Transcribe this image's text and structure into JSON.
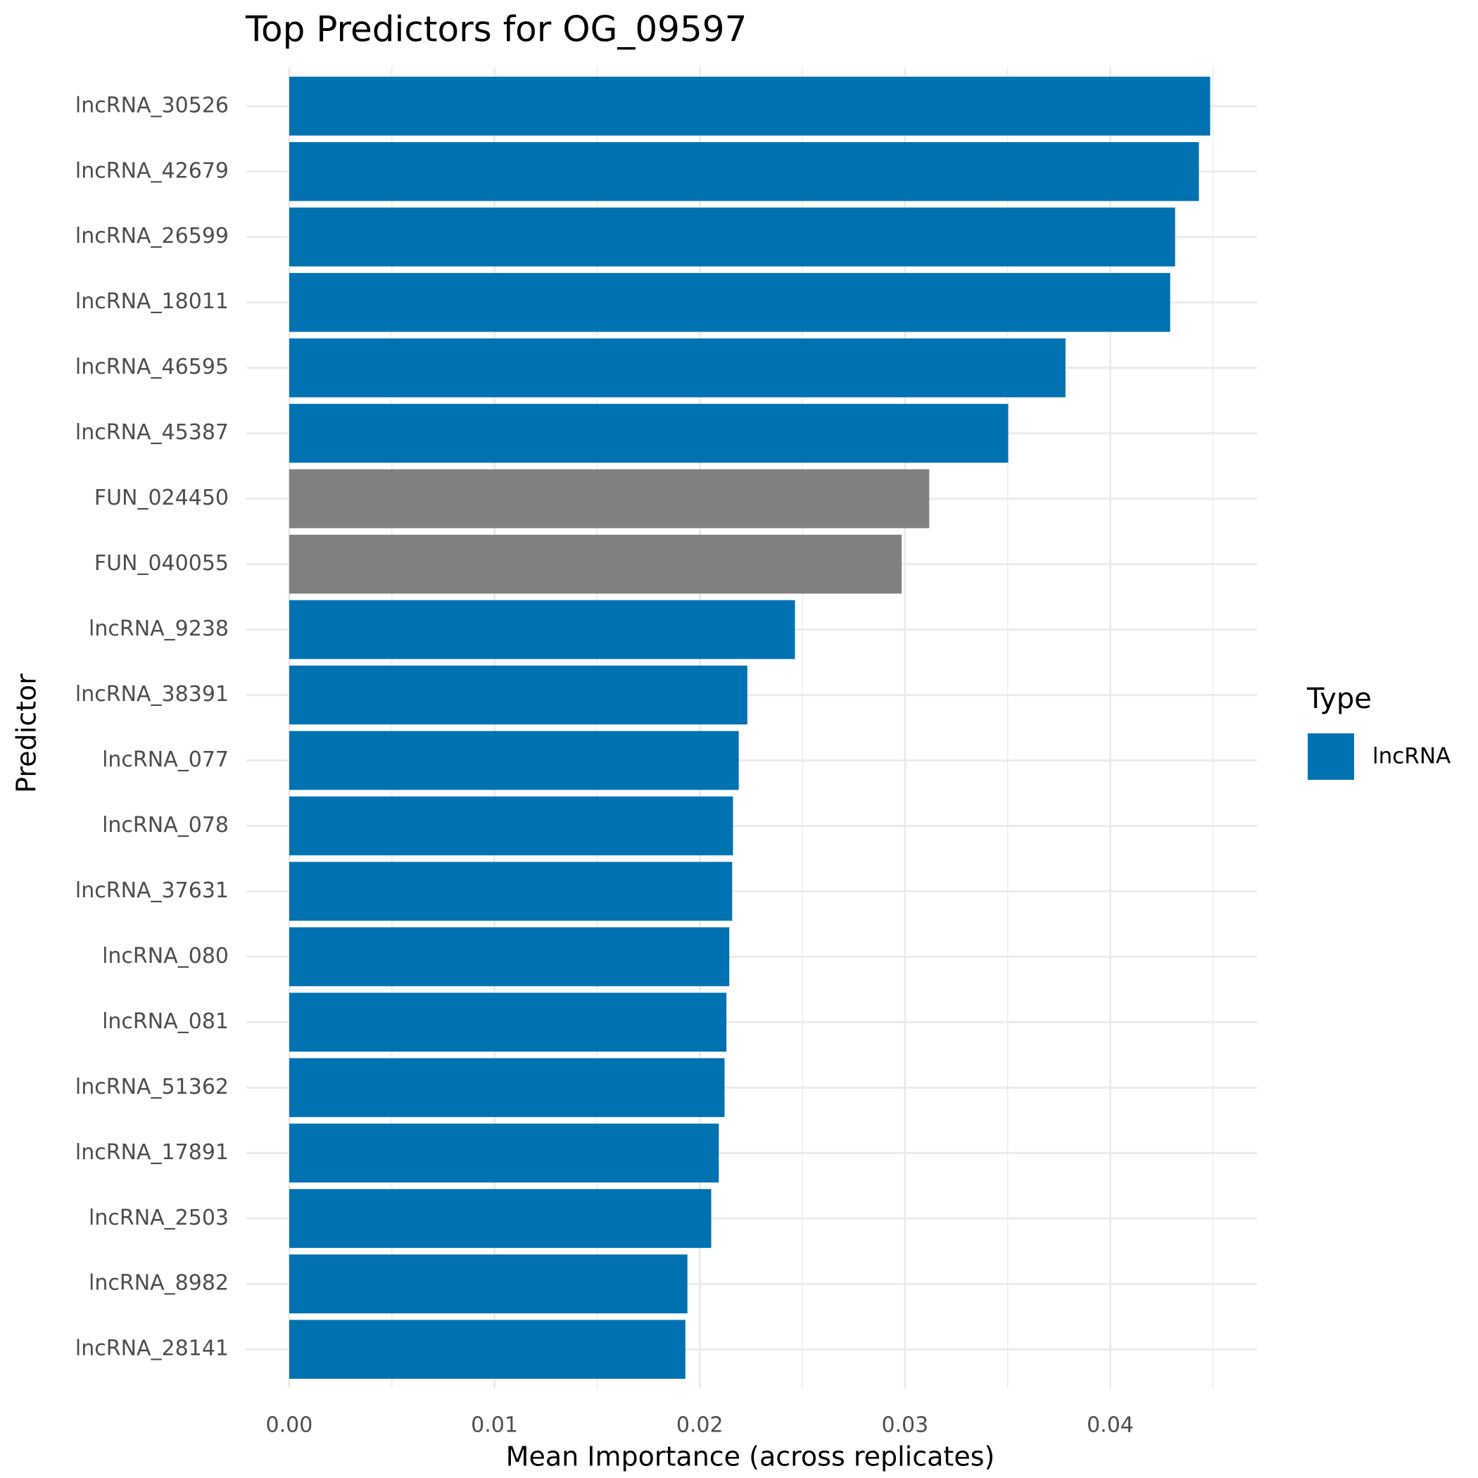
{
  "chart_data": {
    "type": "bar",
    "orientation": "horizontal",
    "title": "Top Predictors for OG_09597",
    "x_label": "Mean Importance (across replicates)",
    "y_label": "Predictor",
    "categories": [
      "lncRNA_30526",
      "lncRNA_42679",
      "lncRNA_26599",
      "lncRNA_18011",
      "lncRNA_46595",
      "lncRNA_45387",
      "FUN_024450",
      "FUN_040055",
      "lncRNA_9238",
      "lncRNA_38391",
      "lncRNA_077",
      "lncRNA_078",
      "lncRNA_37631",
      "lncRNA_080",
      "lncRNA_081",
      "lncRNA_51362",
      "lncRNA_17891",
      "lncRNA_2503",
      "lncRNA_8982",
      "lncRNA_28141"
    ],
    "values": [
      0.04487,
      0.04432,
      0.04316,
      0.04292,
      0.03782,
      0.03503,
      0.03118,
      0.02984,
      0.02464,
      0.02232,
      0.0219,
      0.02162,
      0.02158,
      0.02144,
      0.0213,
      0.02121,
      0.02093,
      0.02056,
      0.0194,
      0.0193
    ],
    "colors": [
      "#0072B2",
      "#0072B2",
      "#0072B2",
      "#0072B2",
      "#0072B2",
      "#0072B2",
      "#808080",
      "#808080",
      "#0072B2",
      "#0072B2",
      "#0072B2",
      "#0072B2",
      "#0072B2",
      "#0072B2",
      "#0072B2",
      "#0072B2",
      "#0072B2",
      "#0072B2",
      "#0072B2",
      "#0072B2"
    ],
    "xlim": [
      -0.00209,
      0.04715
    ],
    "xticks": [
      {
        "value": 0,
        "label": "0.00"
      },
      {
        "value": 0.01,
        "label": "0.01"
      },
      {
        "value": 0.02,
        "label": "0.02"
      },
      {
        "value": 0.03,
        "label": "0.03"
      },
      {
        "value": 0.04,
        "label": "0.04"
      }
    ],
    "xminor": [
      0.005,
      0.015,
      0.025,
      0.035,
      0.045
    ],
    "grid": true,
    "legend": {
      "title": "Type",
      "position": "right",
      "entries": [
        {
          "label": "lncRNA",
          "color": "#0072B2"
        }
      ]
    }
  }
}
